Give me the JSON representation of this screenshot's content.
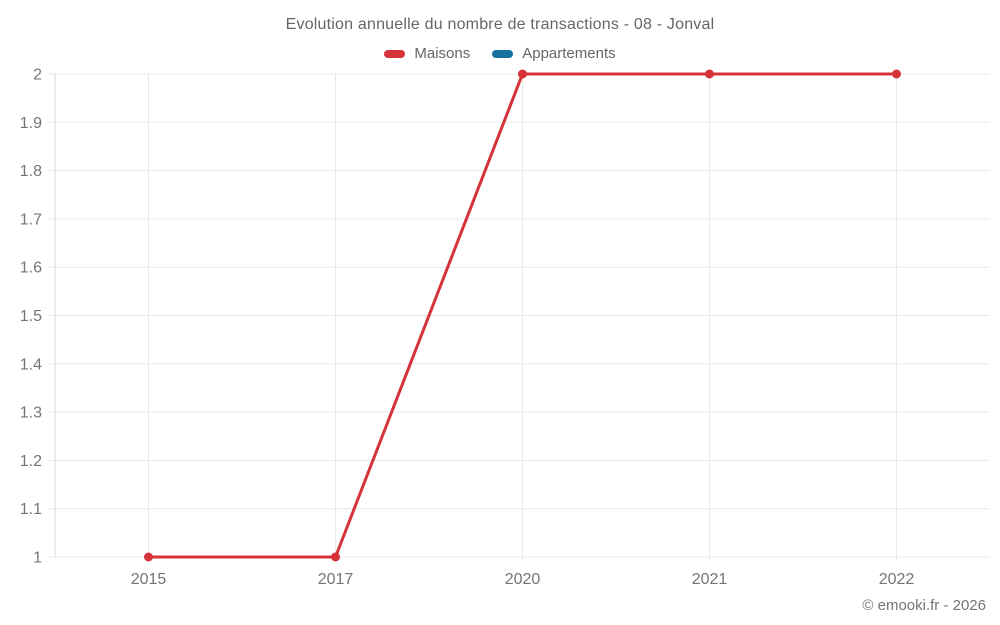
{
  "header": {
    "title": "Evolution annuelle du nombre de transactions - 08 - Jonval"
  },
  "legend": {
    "items": [
      {
        "label": "Maisons",
        "color": "#d5323a"
      },
      {
        "label": "Appartements",
        "color": "#17719f"
      }
    ]
  },
  "footer": {
    "copyright": "© emooki.fr - 2026"
  },
  "chart_data": {
    "type": "line",
    "title": "Evolution annuelle du nombre de transactions - 08 - Jonval",
    "categories": [
      "2015",
      "2017",
      "2020",
      "2021",
      "2022"
    ],
    "series": [
      {
        "name": "Maisons",
        "color": "#d5323a",
        "values": [
          1,
          1,
          2,
          2,
          2
        ]
      },
      {
        "name": "Appartements",
        "color": "#17719f",
        "values": []
      }
    ],
    "xlabel": "",
    "ylabel": "",
    "ylim": [
      1,
      2
    ],
    "ytick_step": 0.1,
    "grid": true,
    "legend_position": "top"
  },
  "style": {
    "background": "#ffffff",
    "grid_color": "#e9e9e9",
    "axis_color": "#d8d8d8",
    "tick_label_color": "#757575",
    "title_color": "#666666",
    "marker_radius": 4.5,
    "line_width": 3
  }
}
